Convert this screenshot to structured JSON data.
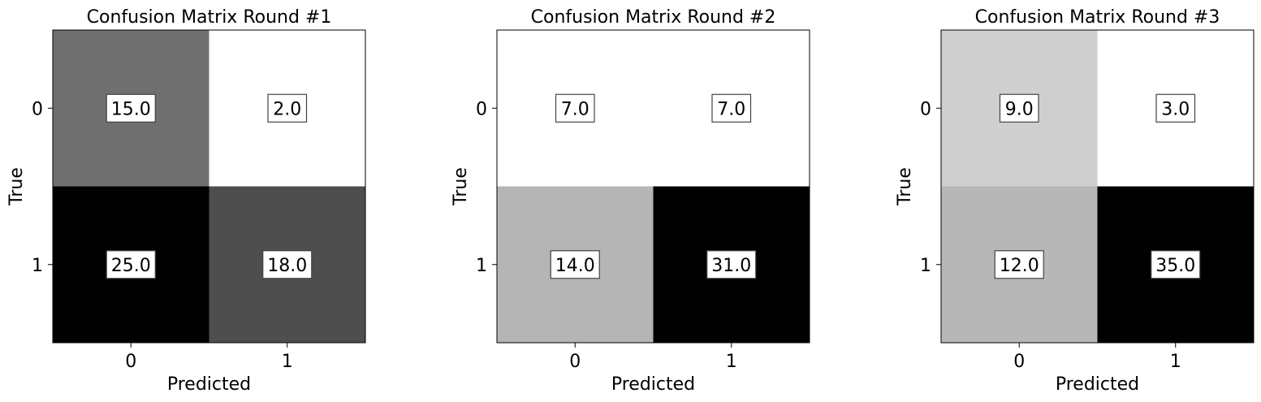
{
  "chart_data": [
    {
      "type": "heatmap",
      "title": "Confusion Matrix Round #1",
      "xlabel": "Predicted",
      "ylabel": "True",
      "x_ticks": [
        "0",
        "1"
      ],
      "y_ticks": [
        "0",
        "1"
      ],
      "colormap": "gray_r",
      "grid": false,
      "matrix": [
        [
          15.0,
          2.0
        ],
        [
          25.0,
          18.0
        ]
      ],
      "cell_labels": [
        [
          "15.0",
          "2.0"
        ],
        [
          "25.0",
          "18.0"
        ]
      ]
    },
    {
      "type": "heatmap",
      "title": "Confusion Matrix Round #2",
      "xlabel": "Predicted",
      "ylabel": "True",
      "x_ticks": [
        "0",
        "1"
      ],
      "y_ticks": [
        "0",
        "1"
      ],
      "colormap": "gray_r",
      "grid": false,
      "matrix": [
        [
          7.0,
          7.0
        ],
        [
          14.0,
          31.0
        ]
      ],
      "cell_labels": [
        [
          "7.0",
          "7.0"
        ],
        [
          "14.0",
          "31.0"
        ]
      ]
    },
    {
      "type": "heatmap",
      "title": "Confusion Matrix Round #3",
      "xlabel": "Predicted",
      "ylabel": "True",
      "x_ticks": [
        "0",
        "1"
      ],
      "y_ticks": [
        "0",
        "1"
      ],
      "colormap": "gray_r",
      "grid": false,
      "matrix": [
        [
          9.0,
          3.0
        ],
        [
          12.0,
          35.0
        ]
      ],
      "cell_labels": [
        [
          "9.0",
          "3.0"
        ],
        [
          "12.0",
          "35.0"
        ]
      ]
    }
  ],
  "colors": {
    "background": "#ffffff",
    "axis": "#000000",
    "label_box_border": "#444444",
    "label_box_fill": "#ffffff"
  }
}
